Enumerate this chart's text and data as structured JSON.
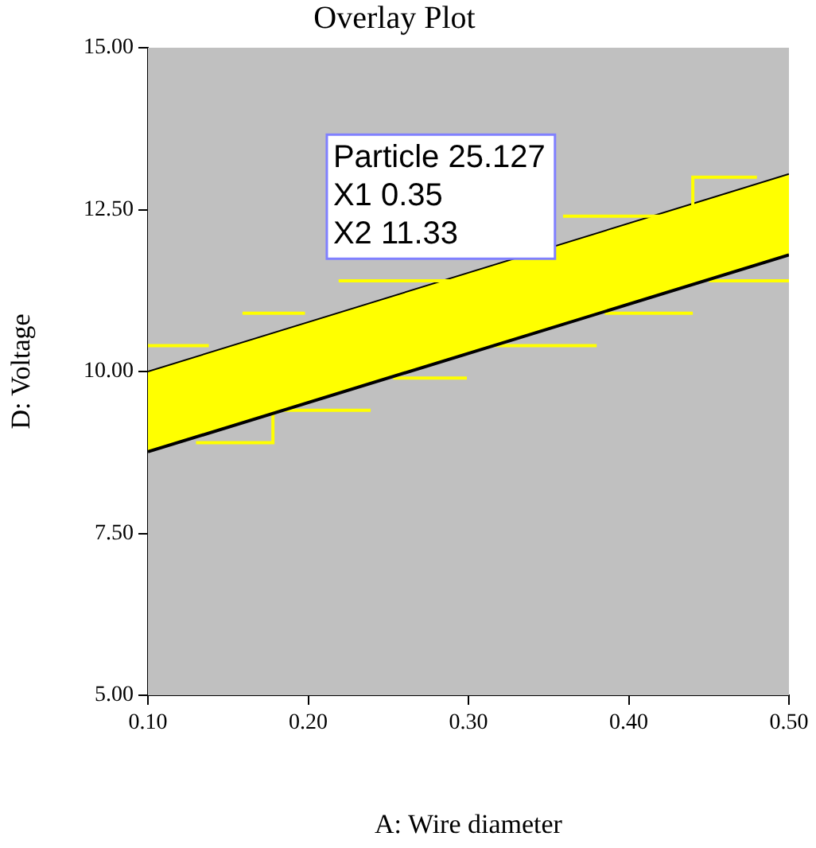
{
  "chart_data": {
    "type": "line",
    "title": "Overlay Plot",
    "xlabel": "A: Wire diameter",
    "ylabel": "D: Voltage",
    "xlim": [
      0.1,
      0.5
    ],
    "xticks": [
      {
        "value": 0.1,
        "label": "0.10"
      },
      {
        "value": 0.2,
        "label": "0.20"
      },
      {
        "value": 0.3,
        "label": "0.30"
      },
      {
        "value": 0.4,
        "label": "0.40"
      },
      {
        "value": 0.5,
        "label": "0.50"
      }
    ],
    "ylim": [
      5,
      15
    ],
    "yticks": [
      {
        "value": 5,
        "label": "5.00"
      },
      {
        "value": 7.5,
        "label": "7.50"
      },
      {
        "value": 10,
        "label": "10.00"
      },
      {
        "value": 12.5,
        "label": "12.50"
      },
      {
        "value": 15,
        "label": "15.00"
      }
    ],
    "legend": false,
    "series": [
      {
        "type": "area",
        "color": "#ffff00",
        "x": [
          0.1,
          0.5
        ],
        "values": [
          10.0,
          13.05
        ]
      },
      {
        "type": "line",
        "color": "#000000",
        "x": [
          0.1,
          0.5
        ],
        "values": [
          8.76,
          11.8
        ]
      },
      {
        "type": "line",
        "color": "#ffff00",
        "x": [
          0.1,
          0.138,
          0.148,
          0.159,
          0.198,
          0.208,
          0.219,
          0.299,
          0.33,
          0.359,
          0.44,
          0.44,
          0.48
        ],
        "values": [
          10.4,
          10.4,
          null,
          10.9,
          10.9,
          null,
          11.4,
          11.4,
          null,
          12.4,
          12.4,
          13.0,
          13.0
        ]
      },
      {
        "type": "line",
        "color": "#ffff00",
        "x": [
          0.13,
          0.178,
          0.178,
          0.239,
          0.244,
          0.253,
          0.299,
          0.305,
          0.315,
          0.38,
          0.383,
          0.385,
          0.44,
          0.445,
          0.45,
          0.5
        ],
        "values": [
          8.9,
          8.9,
          9.4,
          9.4,
          null,
          9.9,
          9.9,
          null,
          10.4,
          10.4,
          null,
          10.9,
          10.9,
          null,
          11.4,
          11.4
        ]
      }
    ],
    "annotations": [
      "Particle 25.127\nX1 0.35\nX2 11.33"
    ]
  }
}
